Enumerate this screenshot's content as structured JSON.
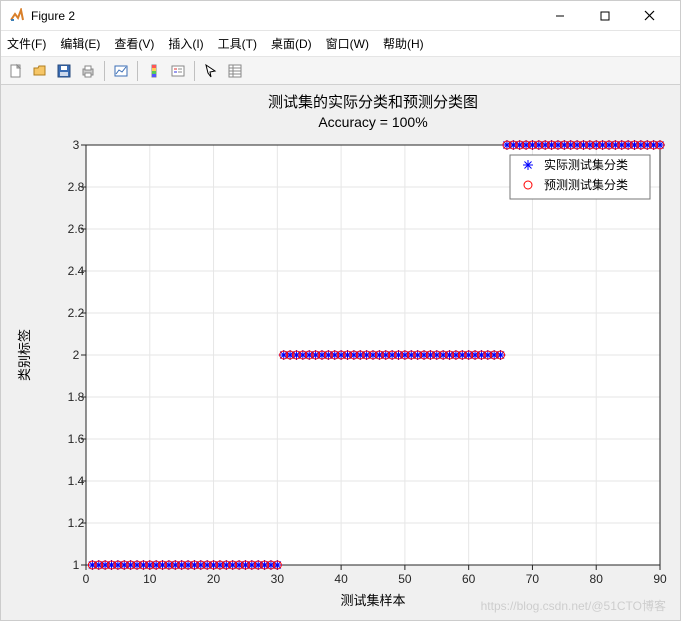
{
  "window": {
    "title": "Figure 2"
  },
  "menu": {
    "file": "文件(F)",
    "edit": "编辑(E)",
    "view": "查看(V)",
    "insert": "插入(I)",
    "tools": "工具(T)",
    "desktop": "桌面(D)",
    "window": "窗口(W)",
    "help": "帮助(H)"
  },
  "chart": {
    "type": "scatter",
    "title": "测试集的实际分类和预测分类图",
    "subtitle": "Accuracy = 100%",
    "xlabel": "测试集样本",
    "ylabel": "类别标签",
    "xlim": [
      0,
      90
    ],
    "ylim": [
      1,
      3
    ],
    "xticks": [
      0,
      10,
      20,
      30,
      40,
      50,
      60,
      70,
      80,
      90
    ],
    "yticks": [
      1,
      1.2,
      1.4,
      1.6,
      1.8,
      2,
      2.2,
      2.4,
      2.6,
      2.8,
      3
    ],
    "background_color": "#ffffff",
    "outer_background": "#f0f0f0",
    "grid_color": "#e6e6e6",
    "axis_color": "#262626",
    "title_fontsize": 15,
    "subtitle_fontsize": 14,
    "label_fontsize": 13,
    "tick_fontsize": 12,
    "legend": {
      "box_border": "#777777",
      "position": "top-right-inside",
      "items": [
        {
          "label": "实际测试集分类",
          "marker": "asterisk",
          "color": "#0000ff"
        },
        {
          "label": "预测测试集分类",
          "marker": "circle",
          "color": "#ff0000"
        }
      ]
    },
    "series": [
      {
        "name": "actual",
        "marker": "asterisk",
        "color": "#0000ff",
        "size": 5,
        "groups": [
          {
            "y": 1,
            "x_start": 1,
            "x_end": 30
          },
          {
            "y": 2,
            "x_start": 31,
            "x_end": 65
          },
          {
            "y": 3,
            "x_start": 66,
            "x_end": 90
          }
        ]
      },
      {
        "name": "predicted",
        "marker": "circle",
        "color": "#ff0000",
        "size": 4,
        "stroke_width": 1,
        "groups": [
          {
            "y": 1,
            "x_start": 1,
            "x_end": 30
          },
          {
            "y": 2,
            "x_start": 31,
            "x_end": 65
          },
          {
            "y": 3,
            "x_start": 66,
            "x_end": 90
          }
        ]
      }
    ]
  },
  "watermark": "https://blog.csdn.net/@51CTO博客"
}
